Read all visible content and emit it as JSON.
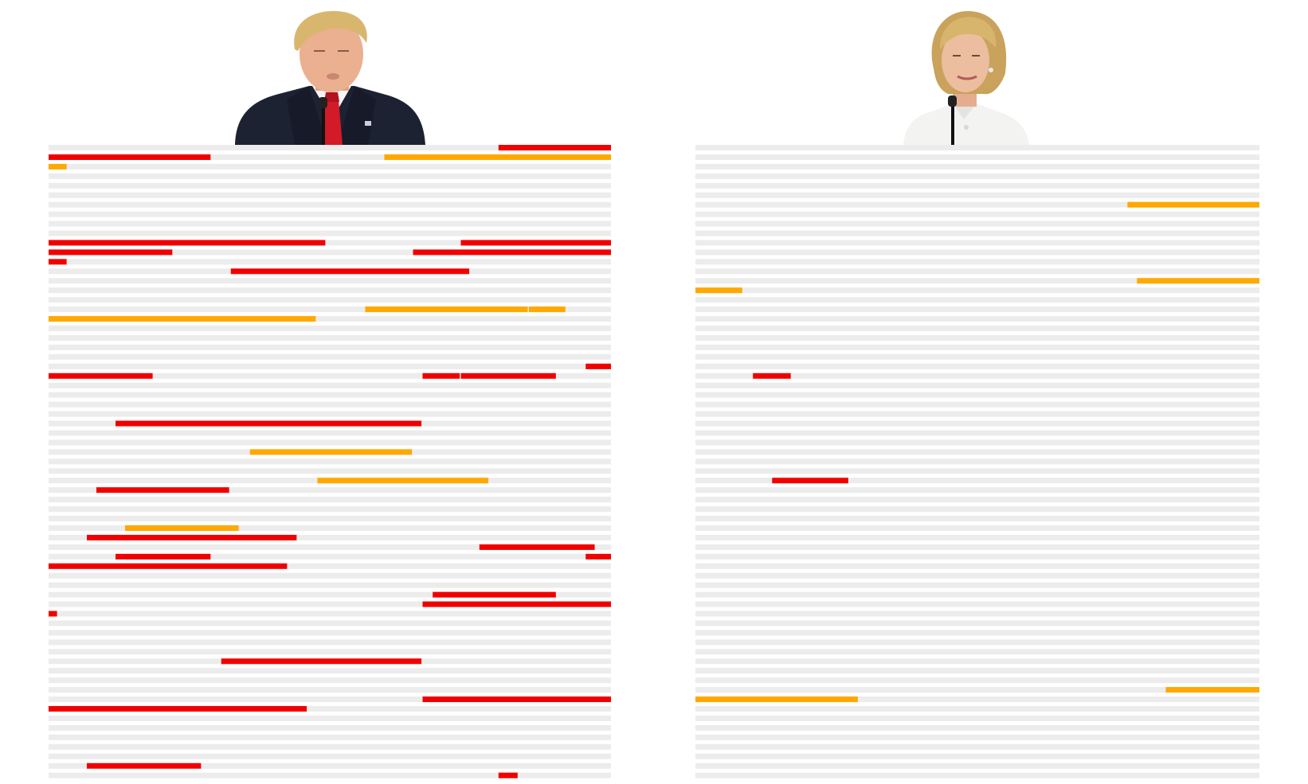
{
  "colors": {
    "background": "#ffffff",
    "track": "#ececec",
    "red": "#f20000",
    "orange": "#ffa800",
    "suit_dark": "#1d2233",
    "tie_red": "#d21a28",
    "jacket_white": "#f3f3f1",
    "hair_blond": "#d7b56d",
    "skin": "#e9b99a"
  },
  "chart_data": {
    "type": "table",
    "line_count": 67,
    "line_length": 100,
    "panels": [
      {
        "portrait": "trump",
        "segments": [
          {
            "line": 1,
            "start": 80,
            "end": 100,
            "color": "red"
          },
          {
            "line": 2,
            "start": 0,
            "end": 28.8,
            "color": "red"
          },
          {
            "line": 2,
            "start": 59.7,
            "end": 100,
            "color": "orange"
          },
          {
            "line": 3,
            "start": 0,
            "end": 3.2,
            "color": "orange"
          },
          {
            "line": 11,
            "start": 0,
            "end": 49.2,
            "color": "red"
          },
          {
            "line": 11,
            "start": 73.3,
            "end": 100,
            "color": "red"
          },
          {
            "line": 12,
            "start": 0,
            "end": 22,
            "color": "red"
          },
          {
            "line": 12,
            "start": 64.8,
            "end": 100,
            "color": "red"
          },
          {
            "line": 13,
            "start": 0,
            "end": 3.2,
            "color": "red"
          },
          {
            "line": 14,
            "start": 32.4,
            "end": 74.8,
            "color": "red"
          },
          {
            "line": 18,
            "start": 56.3,
            "end": 85.2,
            "color": "orange"
          },
          {
            "line": 18,
            "start": 85.4,
            "end": 91.9,
            "color": "orange"
          },
          {
            "line": 19,
            "start": 0,
            "end": 47.5,
            "color": "orange"
          },
          {
            "line": 24,
            "start": 95.5,
            "end": 100,
            "color": "red"
          },
          {
            "line": 25,
            "start": 0,
            "end": 18.5,
            "color": "red"
          },
          {
            "line": 25,
            "start": 66.5,
            "end": 73.1,
            "color": "red"
          },
          {
            "line": 25,
            "start": 73.3,
            "end": 90.2,
            "color": "red"
          },
          {
            "line": 30,
            "start": 11.9,
            "end": 66.3,
            "color": "red"
          },
          {
            "line": 33,
            "start": 35.8,
            "end": 64.6,
            "color": "orange"
          },
          {
            "line": 36,
            "start": 47.8,
            "end": 78.2,
            "color": "orange"
          },
          {
            "line": 37,
            "start": 8.5,
            "end": 32.1,
            "color": "red"
          },
          {
            "line": 41,
            "start": 13.6,
            "end": 33.8,
            "color": "orange"
          },
          {
            "line": 42,
            "start": 6.8,
            "end": 44.1,
            "color": "red"
          },
          {
            "line": 43,
            "start": 76.6,
            "end": 97.1,
            "color": "red"
          },
          {
            "line": 44,
            "start": 11.9,
            "end": 28.8,
            "color": "red"
          },
          {
            "line": 44,
            "start": 95.5,
            "end": 100,
            "color": "red"
          },
          {
            "line": 45,
            "start": 0,
            "end": 42.4,
            "color": "red"
          },
          {
            "line": 48,
            "start": 68.3,
            "end": 90.2,
            "color": "red"
          },
          {
            "line": 49,
            "start": 66.5,
            "end": 100,
            "color": "red"
          },
          {
            "line": 50,
            "start": 0,
            "end": 1.5,
            "color": "red"
          },
          {
            "line": 55,
            "start": 30.7,
            "end": 66.3,
            "color": "red"
          },
          {
            "line": 59,
            "start": 66.5,
            "end": 100,
            "color": "red"
          },
          {
            "line": 60,
            "start": 0,
            "end": 45.9,
            "color": "red"
          },
          {
            "line": 66,
            "start": 6.8,
            "end": 27.1,
            "color": "red"
          },
          {
            "line": 67,
            "start": 80,
            "end": 83.4,
            "color": "red"
          }
        ]
      },
      {
        "portrait": "clinton",
        "segments": [
          {
            "line": 7,
            "start": 76.6,
            "end": 100,
            "color": "orange"
          },
          {
            "line": 15,
            "start": 78.3,
            "end": 100,
            "color": "orange"
          },
          {
            "line": 16,
            "start": 0,
            "end": 8.3,
            "color": "orange"
          },
          {
            "line": 25,
            "start": 10.2,
            "end": 16.9,
            "color": "red"
          },
          {
            "line": 36,
            "start": 13.6,
            "end": 27.1,
            "color": "red"
          },
          {
            "line": 58,
            "start": 83.4,
            "end": 100,
            "color": "orange"
          },
          {
            "line": 59,
            "start": 0,
            "end": 28.8,
            "color": "orange"
          }
        ]
      }
    ]
  }
}
